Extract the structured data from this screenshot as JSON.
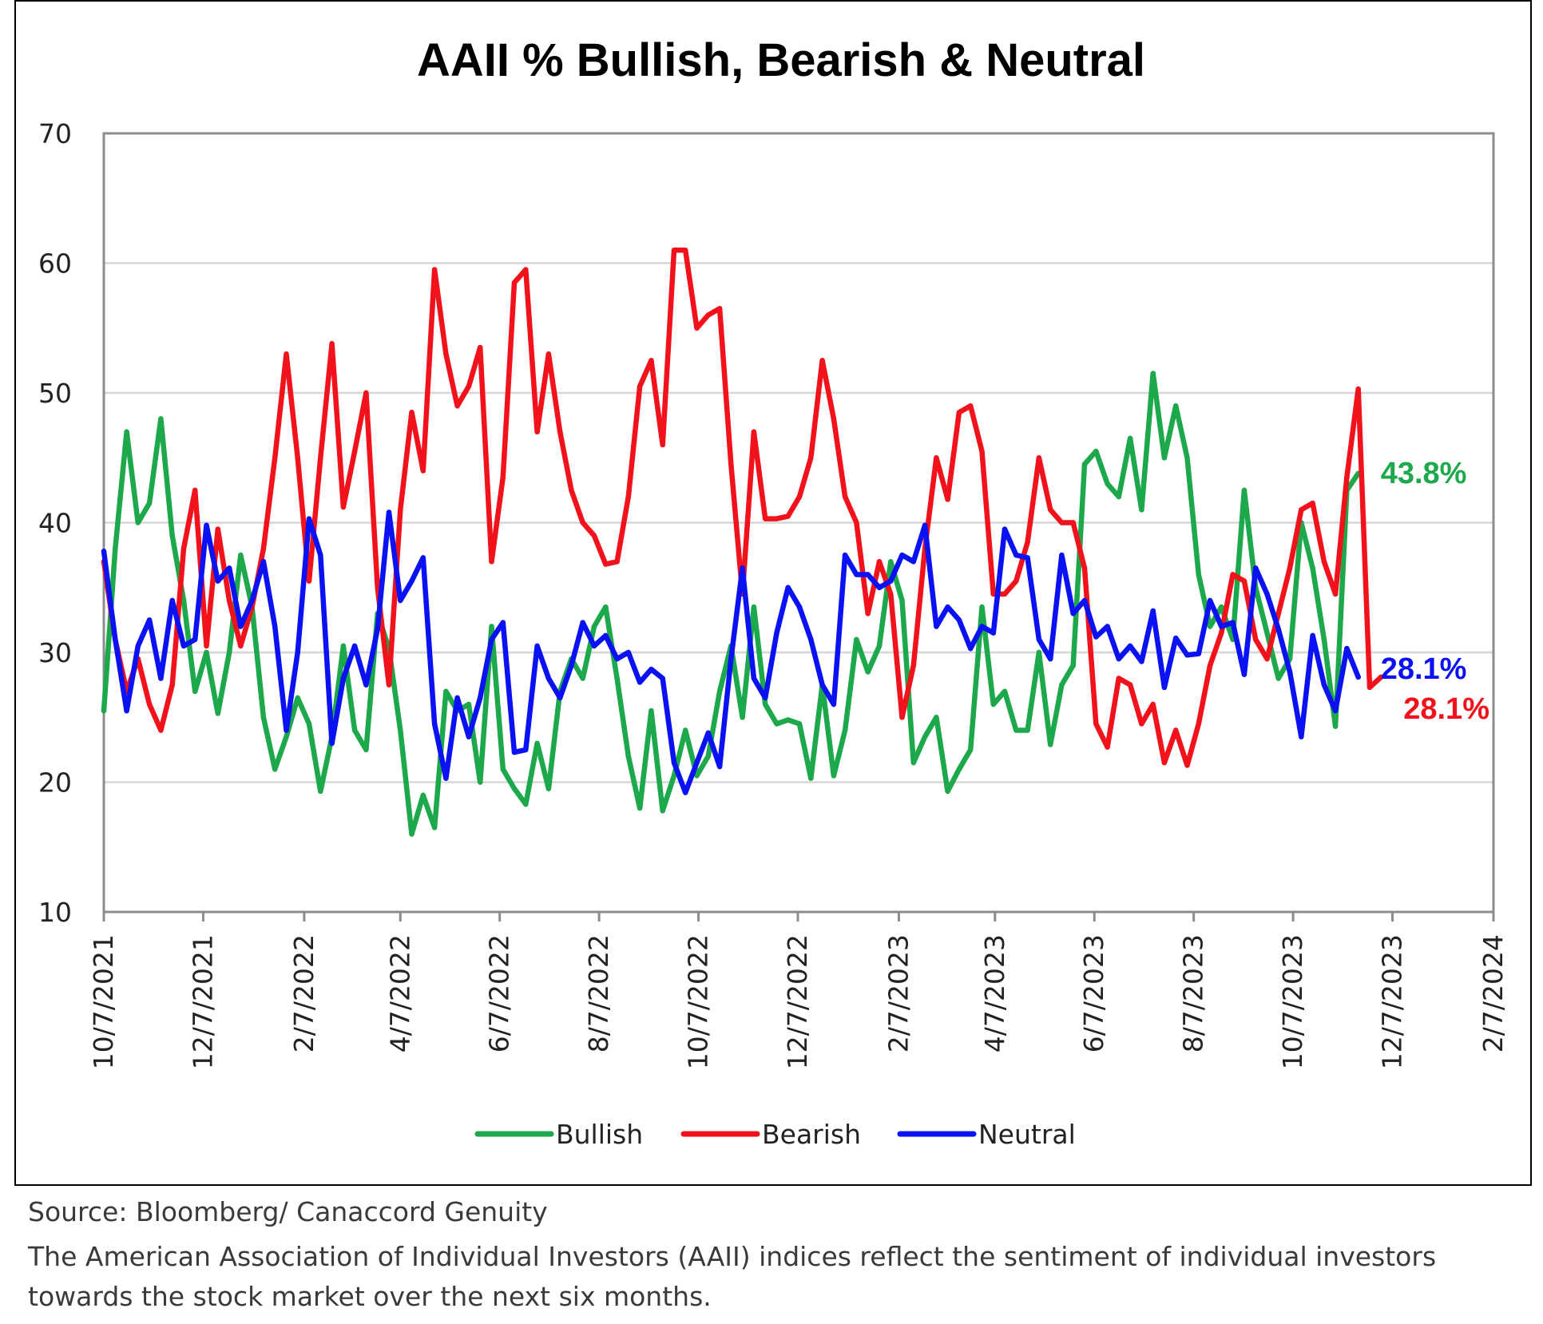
{
  "chart_data": {
    "type": "line",
    "title": "AAII % Bullish, Bearish & Neutral",
    "xlabel": "",
    "ylabel": "",
    "ylim": [
      10,
      70
    ],
    "yticks": [
      10,
      20,
      30,
      40,
      50,
      60,
      70
    ],
    "grid": true,
    "x_axis": {
      "start_date": "2021-10-07",
      "end_date": "2024-02-07",
      "tick_labels": [
        "10/7/2021",
        "12/7/2021",
        "2/7/2022",
        "4/7/2022",
        "6/7/2022",
        "8/7/2022",
        "10/7/2022",
        "12/7/2022",
        "2/7/2023",
        "4/7/2023",
        "6/7/2023",
        "8/7/2023",
        "10/7/2023",
        "12/7/2023",
        "2/7/2024"
      ],
      "tick_dates": [
        "2021-10-07",
        "2021-12-07",
        "2022-02-07",
        "2022-04-07",
        "2022-06-07",
        "2022-08-07",
        "2022-10-07",
        "2022-12-07",
        "2023-02-07",
        "2023-04-07",
        "2023-06-07",
        "2023-08-07",
        "2023-10-07",
        "2023-12-07",
        "2024-02-07"
      ]
    },
    "series": [
      {
        "name": "Bullish",
        "color": "#1da84b",
        "x_start": "2021-10-07",
        "x_step_days": 7,
        "values": [
          25.5,
          38,
          47,
          40,
          41.5,
          48,
          39,
          34,
          27,
          30,
          25.3,
          30,
          37.5,
          33.5,
          25,
          21,
          23.5,
          26.5,
          24.5,
          19.3,
          23.5,
          30.5,
          24,
          22.5,
          33,
          30.3,
          24,
          16,
          19,
          16.5,
          27,
          25.5,
          26,
          20,
          32,
          21,
          19.5,
          18.3,
          23,
          19.5,
          27,
          29.5,
          28,
          32,
          33.5,
          28,
          22,
          18,
          25.5,
          17.8,
          20.5,
          24,
          20.5,
          22,
          27,
          30.5,
          25,
          33.5,
          26,
          24.5,
          24.8,
          24.5,
          20.3,
          27.5,
          20.5,
          24,
          31,
          28.5,
          30.5,
          37,
          34,
          21.5,
          23.5,
          25,
          19.3,
          21,
          22.5,
          33.5,
          26,
          27,
          24,
          24,
          30,
          22.9,
          27.5,
          29,
          44.5,
          45.5,
          43,
          42,
          46.5,
          41,
          51.5,
          45,
          49,
          45,
          36,
          32,
          33.5,
          31,
          42.5,
          35,
          31.5,
          28,
          29.5,
          40,
          36.5,
          31,
          24.3,
          42.5,
          43.8
        ]
      },
      {
        "name": "Bearish",
        "color": "#f2121b",
        "x_start": "2021-10-07",
        "x_step_days": 7,
        "values": [
          37,
          31,
          27,
          29.5,
          26,
          24,
          27.5,
          38,
          42.5,
          30.5,
          39.5,
          34,
          30.5,
          33.5,
          38,
          45,
          53,
          45,
          35.5,
          45,
          53.8,
          41.2,
          45.5,
          50,
          35,
          27.5,
          41,
          48.5,
          44,
          59.5,
          53,
          49,
          50.5,
          53.5,
          37,
          43.5,
          58.5,
          59.5,
          47,
          53,
          47,
          42.5,
          40,
          39,
          36.8,
          37,
          42,
          50.5,
          52.5,
          46,
          61,
          61,
          55,
          56,
          56.5,
          44.5,
          34.5,
          47,
          40.3,
          40.3,
          40.5,
          42,
          45,
          52.5,
          48,
          42,
          40,
          33,
          37,
          34.5,
          25,
          29,
          38,
          45,
          41.8,
          48.5,
          49,
          45.5,
          34.5,
          34.5,
          35.5,
          38.5,
          45,
          41,
          40,
          40,
          36.5,
          24.5,
          22.7,
          28,
          27.5,
          24.5,
          26,
          21.5,
          24,
          21.3,
          24.5,
          29,
          31.5,
          36,
          35.5,
          31,
          29.5,
          33,
          36.5,
          41,
          41.5,
          37,
          34.5,
          43.5,
          50.3,
          27.3,
          28.1
        ]
      },
      {
        "name": "Neutral",
        "color": "#0a11f2",
        "x_start": "2021-10-07",
        "x_step_days": 7,
        "values": [
          37.8,
          31,
          25.5,
          30.5,
          32.5,
          28,
          34,
          30.5,
          31,
          39.8,
          35.5,
          36.5,
          32,
          34,
          37,
          32,
          24,
          30,
          40.3,
          37.5,
          23,
          28,
          30.5,
          27.5,
          31.8,
          40.8,
          34,
          35.5,
          37.3,
          24.5,
          20.3,
          26.5,
          23.5,
          26.5,
          31,
          32.3,
          22.3,
          22.5,
          30.5,
          28,
          26.5,
          29,
          32.3,
          30.5,
          31.3,
          29.5,
          30,
          27.7,
          28.7,
          28,
          21.5,
          19.2,
          21.5,
          23.8,
          21.2,
          29.5,
          36.5,
          28,
          26.5,
          31.5,
          35,
          33.5,
          31,
          27.5,
          26,
          37.5,
          36,
          36,
          35,
          35.5,
          37.5,
          37,
          39.8,
          32,
          33.5,
          32.5,
          30.3,
          32,
          31.5,
          39.5,
          37.5,
          37.3,
          31,
          29.5,
          37.5,
          33,
          34,
          31.2,
          32,
          29.5,
          30.5,
          29.3,
          33.2,
          27.3,
          31.1,
          29.8,
          29.9,
          34,
          32,
          32.3,
          28.3,
          36.5,
          34.5,
          31.8,
          28.5,
          23.5,
          31.3,
          27.5,
          25.5,
          30.3,
          28.1
        ]
      }
    ],
    "legend": {
      "placement": "bottom",
      "entries": [
        "Bullish",
        "Bearish",
        "Neutral"
      ]
    },
    "annotations": [
      {
        "text": "43.8%",
        "series": "Bullish",
        "color": "#1da84b",
        "value": 43.8
      },
      {
        "text": "28.1%",
        "series": "Neutral",
        "color": "#0a11f2",
        "value": 28.1
      },
      {
        "text": "28.1%",
        "series": "Bearish",
        "color": "#f2121b",
        "value": 28.1
      }
    ]
  },
  "footer": {
    "source": "Source: Bloomberg/ Canaccord Genuity",
    "note_line1": "The American Association of Individual Investors (AAII) indices reflect the sentiment of individual investors",
    "note_line2": "towards the stock market over the next six months."
  }
}
